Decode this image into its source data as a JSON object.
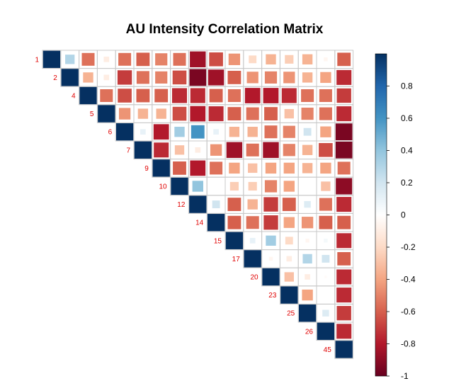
{
  "chart_data": {
    "type": "heatmap",
    "title": "AU Intensity Correlation Matrix",
    "method": "square",
    "layout": "upper triangle",
    "labels": [
      "1",
      "2",
      "4",
      "5",
      "6",
      "7",
      "9",
      "10",
      "12",
      "14",
      "15",
      "17",
      "20",
      "23",
      "25",
      "26",
      "45"
    ],
    "matrix": [
      [
        1,
        0.3,
        -0.55,
        -0.1,
        -0.55,
        -0.6,
        -0.5,
        -0.55,
        -0.85,
        -0.65,
        -0.45,
        -0.2,
        -0.35,
        -0.25,
        -0.35,
        -0.05,
        -0.6
      ],
      [
        null,
        1,
        -0.35,
        -0.1,
        -0.7,
        -0.55,
        -0.5,
        -0.65,
        -0.95,
        -0.85,
        -0.6,
        -0.45,
        -0.5,
        -0.45,
        -0.35,
        -0.4,
        -0.75
      ],
      [
        null,
        null,
        1,
        -0.55,
        -0.65,
        -0.6,
        -0.6,
        -0.75,
        -0.75,
        -0.6,
        -0.55,
        -0.8,
        -0.8,
        -0.75,
        -0.55,
        -0.55,
        -0.7
      ],
      [
        null,
        null,
        null,
        1,
        -0.45,
        -0.35,
        -0.35,
        -0.65,
        -0.8,
        -0.75,
        -0.6,
        -0.55,
        -0.6,
        -0.3,
        -0.5,
        -0.55,
        -0.75
      ],
      [
        null,
        null,
        null,
        null,
        1,
        0.1,
        -0.8,
        0.35,
        0.6,
        0.1,
        -0.35,
        -0.35,
        -0.55,
        -0.5,
        0.2,
        -0.4,
        -0.95
      ],
      [
        null,
        null,
        null,
        null,
        null,
        1,
        -0.75,
        -0.3,
        -0.1,
        -0.45,
        -0.85,
        -0.55,
        -0.85,
        -0.5,
        -0.35,
        -0.65,
        -0.95
      ],
      [
        null,
        null,
        null,
        null,
        null,
        null,
        1,
        -0.6,
        -0.8,
        -0.55,
        -0.4,
        -0.3,
        -0.4,
        -0.4,
        -0.35,
        -0.4,
        -0.55
      ],
      [
        null,
        null,
        null,
        null,
        null,
        null,
        null,
        1,
        0.4,
        0.0,
        -0.25,
        -0.25,
        -0.5,
        -0.4,
        0.0,
        -0.3,
        -0.9
      ],
      [
        null,
        null,
        null,
        null,
        null,
        null,
        null,
        null,
        1,
        0.2,
        -0.6,
        -0.35,
        -0.7,
        -0.6,
        0.15,
        -0.55,
        -0.75
      ],
      [
        null,
        null,
        null,
        null,
        null,
        null,
        null,
        null,
        null,
        1,
        -0.6,
        -0.55,
        -0.7,
        -0.4,
        -0.45,
        -0.6,
        -0.6
      ],
      [
        null,
        null,
        null,
        null,
        null,
        null,
        null,
        null,
        null,
        null,
        1,
        0.1,
        0.35,
        -0.2,
        -0.05,
        0.05,
        -0.75
      ],
      [
        null,
        null,
        null,
        null,
        null,
        null,
        null,
        null,
        null,
        null,
        null,
        1,
        -0.05,
        -0.1,
        0.3,
        0.2,
        -0.6
      ],
      [
        null,
        null,
        null,
        null,
        null,
        null,
        null,
        null,
        null,
        null,
        null,
        null,
        1,
        -0.3,
        -0.1,
        -0.02,
        -0.75
      ],
      [
        null,
        null,
        null,
        null,
        null,
        null,
        null,
        null,
        null,
        null,
        null,
        null,
        null,
        1,
        -0.4,
        0.0,
        -0.75
      ],
      [
        null,
        null,
        null,
        null,
        null,
        null,
        null,
        null,
        null,
        null,
        null,
        null,
        null,
        null,
        1,
        0.15,
        -0.7
      ],
      [
        null,
        null,
        null,
        null,
        null,
        null,
        null,
        null,
        null,
        null,
        null,
        null,
        null,
        null,
        null,
        1,
        -0.75
      ],
      [
        null,
        null,
        null,
        null,
        null,
        null,
        null,
        null,
        null,
        null,
        null,
        null,
        null,
        null,
        null,
        null,
        1
      ]
    ],
    "colorbar": {
      "range": [
        -1,
        1
      ],
      "ticks": [
        0.8,
        0.6,
        0.4,
        0.2,
        0,
        -0.2,
        -0.4,
        -0.6,
        -0.8,
        -1
      ],
      "tick_labels": [
        "0.8",
        "0.6",
        "0.4",
        "0.2",
        "0",
        "-0.2",
        "-0.4",
        "-0.6",
        "-0.8",
        "-1"
      ],
      "placement": "right"
    },
    "colors": {
      "label": "#e00000",
      "grid": "#c8c8c8",
      "scale": [
        "#67001F",
        "#B2182B",
        "#D6604D",
        "#F4A582",
        "#FDDBC7",
        "#FFFFFF",
        "#D1E5F0",
        "#92C5DE",
        "#4393C3",
        "#2166AC",
        "#053061"
      ]
    }
  }
}
